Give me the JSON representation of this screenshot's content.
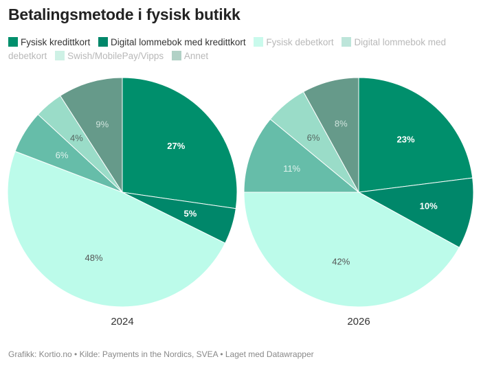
{
  "title": "Betalingsmetode i fysisk butikk",
  "footer": "Grafikk: Kortio.no • Kilde: Payments in the Nordics, SVEA • Laget med Datawrapper",
  "legend": [
    {
      "label": "Fysisk kredittkort",
      "color": "#008f6c",
      "faded": false
    },
    {
      "label": "Digital lommebok med kredittkort",
      "color": "#00876a",
      "faded": false
    },
    {
      "label": "Fysisk debetkort",
      "color": "#bff9e9",
      "faded": true
    },
    {
      "label": "Digital lommebok med debetkort",
      "color": "#b2e0d3",
      "faded": true
    },
    {
      "label": "Swish/MobilePay/Vipps",
      "color": "#c6efe0",
      "faded": true
    },
    {
      "label": "Annet",
      "color": "#a3c9bc",
      "faded": true
    }
  ],
  "chart_data": [
    {
      "type": "pie",
      "label": "2024",
      "slices": [
        {
          "category": "Fysisk kredittkort",
          "value": 27,
          "label": "27%",
          "color": "#008f6c",
          "bold": true,
          "text_color": "#ffffff"
        },
        {
          "category": "Digital lommebok med kredittkort",
          "value": 5,
          "label": "5%",
          "color": "#00876a",
          "bold": true,
          "text_color": "#ffffff"
        },
        {
          "category": "Fysisk debetkort",
          "value": 48,
          "label": "48%",
          "color": "#bcfbea",
          "bold": false,
          "text_color": "#555555"
        },
        {
          "category": "Digital lommebok med debetkort",
          "value": 6,
          "label": "6%",
          "color": "#66bda9",
          "bold": false,
          "text_color": "#e0f3ee"
        },
        {
          "category": "Swish/MobilePay/Vipps",
          "value": 4,
          "label": "4%",
          "color": "#9adcc8",
          "bold": false,
          "text_color": "#556660"
        },
        {
          "category": "Annet",
          "value": 9,
          "label": "9%",
          "color": "#669a8a",
          "bold": false,
          "text_color": "#cfe3dc"
        }
      ]
    },
    {
      "type": "pie",
      "label": "2026",
      "slices": [
        {
          "category": "Fysisk kredittkort",
          "value": 23,
          "label": "23%",
          "color": "#008f6c",
          "bold": true,
          "text_color": "#ffffff"
        },
        {
          "category": "Digital lommebok med kredittkort",
          "value": 10,
          "label": "10%",
          "color": "#00876a",
          "bold": true,
          "text_color": "#ffffff"
        },
        {
          "category": "Fysisk debetkort",
          "value": 42,
          "label": "42%",
          "color": "#bcfbea",
          "bold": false,
          "text_color": "#555555"
        },
        {
          "category": "Digital lommebok med debetkort",
          "value": 11,
          "label": "11%",
          "color": "#66bda9",
          "bold": false,
          "text_color": "#e0f3ee"
        },
        {
          "category": "Swish/MobilePay/Vipps",
          "value": 6,
          "label": "6%",
          "color": "#9adcc8",
          "bold": false,
          "text_color": "#556660"
        },
        {
          "category": "Annet",
          "value": 8,
          "label": "8%",
          "color": "#669a8a",
          "bold": false,
          "text_color": "#cfe3dc"
        }
      ]
    }
  ]
}
